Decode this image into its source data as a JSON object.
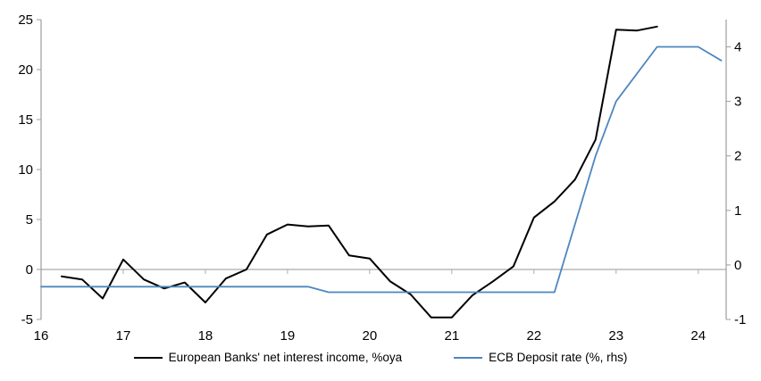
{
  "chart_data": {
    "type": "line",
    "title": "",
    "colors": {
      "axis": "#9e9e9e",
      "gridline": "#ababab",
      "nii_line": "#000000",
      "ecb_line": "#4e86c0"
    },
    "x_axis": {
      "ticks": [
        16,
        17,
        18,
        19,
        20,
        21,
        22,
        23,
        24
      ],
      "range": [
        16,
        24.34
      ]
    },
    "left_axis": {
      "ticks": [
        -5,
        0,
        5,
        10,
        15,
        20,
        25
      ],
      "range": [
        -5,
        25
      ]
    },
    "right_axis": {
      "ticks": [
        -1,
        0,
        1,
        2,
        3,
        4
      ],
      "range": [
        -1,
        4.5
      ]
    },
    "series": [
      {
        "name": "European Banks' net interest income, %oya",
        "axis": "left",
        "color": "#000000",
        "width": 2,
        "x": [
          16.25,
          16.5,
          16.75,
          17.0,
          17.25,
          17.5,
          17.75,
          18.0,
          18.25,
          18.5,
          18.75,
          19.0,
          19.25,
          19.5,
          19.75,
          20.0,
          20.25,
          20.5,
          20.75,
          21.0,
          21.25,
          21.5,
          21.75,
          22.0,
          22.25,
          22.5,
          22.75,
          23.0,
          23.25,
          23.5
        ],
        "y": [
          -0.7,
          -1.0,
          -2.9,
          1.0,
          -1.0,
          -1.9,
          -1.3,
          -3.3,
          -0.9,
          0.0,
          3.5,
          4.5,
          4.3,
          4.4,
          1.4,
          1.1,
          -1.2,
          -2.5,
          -4.8,
          -4.8,
          -2.6,
          -1.2,
          0.3,
          5.2,
          6.8,
          9.0,
          13.0,
          24.0,
          23.9,
          24.3
        ]
      },
      {
        "name": "ECB Deposit rate (%, rhs)",
        "axis": "right",
        "color": "#4e86c0",
        "width": 1.8,
        "x": [
          16.0,
          19.25,
          19.5,
          22.25,
          22.75,
          23.0,
          23.5,
          24.0,
          24.28
        ],
        "y": [
          -0.4,
          -0.4,
          -0.5,
          -0.5,
          2.0,
          3.0,
          4.0,
          4.0,
          3.75
        ]
      }
    ],
    "legend": {
      "items": [
        {
          "label": "European Banks' net interest income, %oya"
        },
        {
          "label": "ECB Deposit rate (%, rhs)"
        }
      ]
    }
  }
}
